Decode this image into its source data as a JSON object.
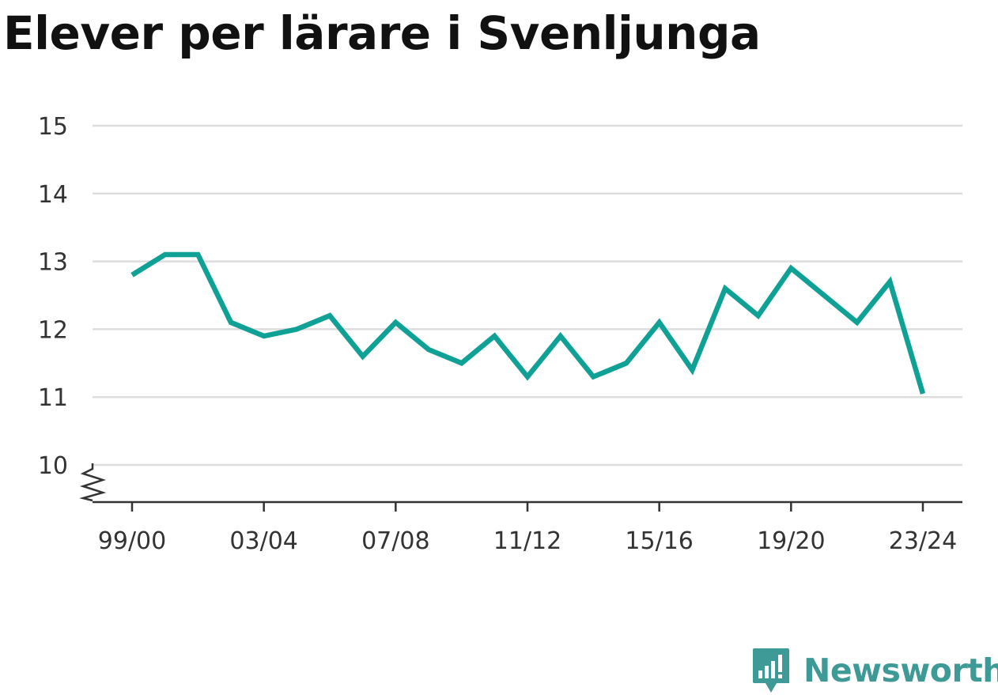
{
  "title": "Elever per lärare i Svenljunga",
  "brand": {
    "name": "Newsworthy",
    "icon": "newsworthy-logo-icon",
    "color": "#3d9a96"
  },
  "chart_data": {
    "type": "line",
    "title": "Elever per lärare i Svenljunga",
    "xlabel": "",
    "ylabel": "",
    "x": [
      "99/00",
      "00/01",
      "01/02",
      "02/03",
      "03/04",
      "04/05",
      "05/06",
      "06/07",
      "07/08",
      "08/09",
      "09/10",
      "10/11",
      "11/12",
      "12/13",
      "13/14",
      "14/15",
      "15/16",
      "16/17",
      "17/18",
      "18/19",
      "19/20",
      "20/21",
      "21/22",
      "22/23",
      "23/24"
    ],
    "x_tick_labels": [
      "99/00",
      "03/04",
      "07/08",
      "11/12",
      "15/16",
      "19/20",
      "23/24"
    ],
    "series": [
      {
        "color": "#0fa195",
        "values": [
          12.8,
          13.1,
          13.1,
          12.1,
          11.9,
          12.0,
          12.2,
          11.6,
          12.1,
          11.7,
          11.5,
          11.9,
          11.3,
          11.9,
          11.3,
          11.5,
          12.1,
          11.4,
          12.6,
          12.2,
          12.9,
          12.5,
          12.1,
          12.7,
          11.05
        ]
      }
    ],
    "y_ticks": [
      10,
      11,
      12,
      13,
      14,
      15
    ],
    "y_tick_labels": [
      "10",
      "11",
      "12",
      "13",
      "14",
      "15"
    ],
    "ylim": [
      9.45,
      15
    ],
    "y_axis_break": true,
    "grid": true
  }
}
